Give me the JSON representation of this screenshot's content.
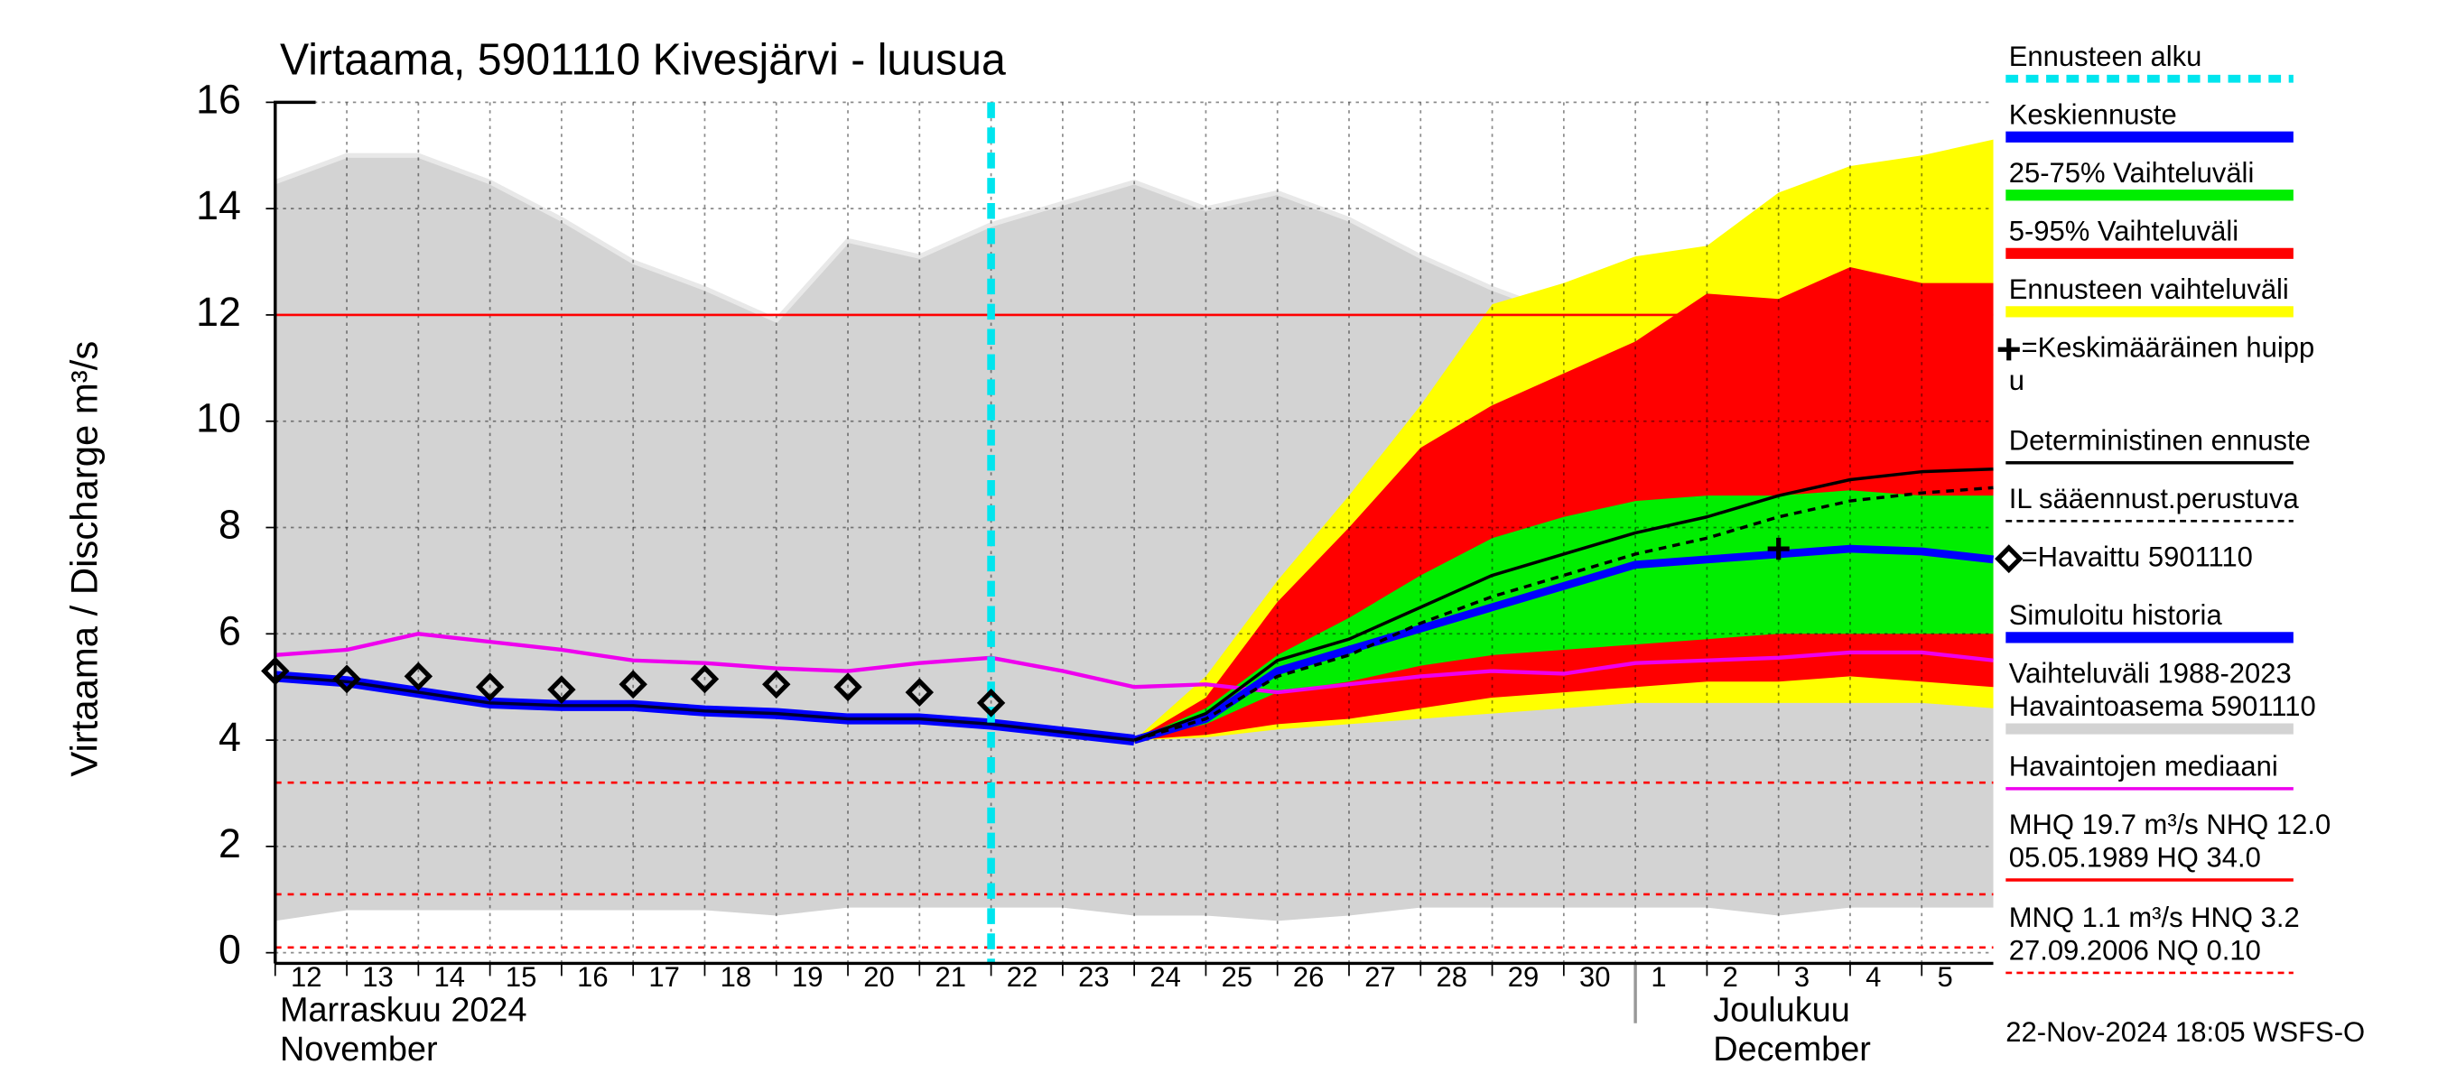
{
  "chart_data": {
    "type": "forecast-band",
    "title": "Virtaama, 5901110 Kivesjärvi - luusua",
    "y_label": "Virtaama / Discharge   m³/s",
    "ylim": [
      -0.2,
      16
    ],
    "yticks": [
      0,
      2,
      4,
      6,
      8,
      10,
      12,
      14,
      16
    ],
    "xlim": [
      0,
      24
    ],
    "xticks": [
      {
        "value": 0,
        "label": "12"
      },
      {
        "value": 1,
        "label": "13"
      },
      {
        "value": 2,
        "label": "14"
      },
      {
        "value": 3,
        "label": "15"
      },
      {
        "value": 4,
        "label": "16"
      },
      {
        "value": 5,
        "label": "17"
      },
      {
        "value": 6,
        "label": "18"
      },
      {
        "value": 7,
        "label": "19"
      },
      {
        "value": 8,
        "label": "20"
      },
      {
        "value": 9,
        "label": "21"
      },
      {
        "value": 10,
        "label": "22"
      },
      {
        "value": 11,
        "label": "23"
      },
      {
        "value": 12,
        "label": "24"
      },
      {
        "value": 13,
        "label": "25"
      },
      {
        "value": 14,
        "label": "26"
      },
      {
        "value": 15,
        "label": "27"
      },
      {
        "value": 16,
        "label": "28"
      },
      {
        "value": 17,
        "label": "29"
      },
      {
        "value": 18,
        "label": "30"
      },
      {
        "value": 19,
        "label": "1"
      },
      {
        "value": 20,
        "label": "2"
      },
      {
        "value": 21,
        "label": "3"
      },
      {
        "value": 22,
        "label": "4"
      },
      {
        "value": 23,
        "label": "5"
      }
    ],
    "months": [
      {
        "value": 0,
        "lines": [
          "Marraskuu 2024",
          "November"
        ]
      },
      {
        "value": 19,
        "lines": [
          "Joulukuu",
          "December"
        ]
      }
    ],
    "grid": true,
    "history_band": {
      "color": "#d3d3d3",
      "x": [
        0,
        1,
        2,
        3,
        4,
        5,
        6,
        7,
        8,
        9,
        10,
        11,
        12,
        13,
        14,
        15,
        16,
        17,
        18,
        19,
        20,
        21,
        22,
        23,
        24
      ],
      "upper": [
        14.5,
        15,
        15,
        14.5,
        13.8,
        13,
        12.5,
        11.9,
        13.4,
        13.1,
        13.7,
        14.1,
        14.5,
        14.0,
        14.3,
        13.8,
        13.1,
        12.5,
        12.0,
        11.7,
        11.3,
        10.8,
        10.5,
        10.8,
        10.8
      ],
      "lower": [
        0.6,
        0.8,
        0.8,
        0.8,
        0.8,
        0.8,
        0.8,
        0.7,
        0.85,
        0.85,
        0.85,
        0.85,
        0.7,
        0.7,
        0.6,
        0.7,
        0.85,
        0.85,
        0.85,
        0.85,
        0.85,
        0.7,
        0.85,
        0.85,
        0.85
      ],
      "edge_color": "#e8e8e8"
    },
    "forecast_range": {
      "color": "#ffff00",
      "x": [
        12,
        13,
        14,
        15,
        16,
        17,
        18,
        19,
        20,
        21,
        22,
        23,
        24
      ],
      "upper": [
        4.0,
        5.2,
        7.0,
        8.6,
        10.3,
        12.2,
        12.6,
        13.1,
        13.3,
        14.3,
        14.8,
        15.0,
        15.3
      ],
      "lower": [
        4.0,
        4.05,
        4.2,
        4.3,
        4.4,
        4.5,
        4.6,
        4.7,
        4.7,
        4.7,
        4.7,
        4.7,
        4.6
      ]
    },
    "p5_95": {
      "color": "#ff0000",
      "x": [
        12,
        13,
        14,
        15,
        16,
        17,
        18,
        19,
        20,
        21,
        22,
        23,
        24
      ],
      "upper": [
        4.0,
        4.8,
        6.6,
        8.0,
        9.5,
        10.3,
        10.9,
        11.5,
        12.4,
        12.3,
        12.9,
        12.6,
        12.6
      ],
      "lower": [
        4.0,
        4.1,
        4.3,
        4.4,
        4.6,
        4.8,
        4.9,
        5.0,
        5.1,
        5.1,
        5.2,
        5.1,
        5.0
      ]
    },
    "p25_75": {
      "color": "#00ee00",
      "x": [
        12,
        13,
        14,
        15,
        16,
        17,
        18,
        19,
        20,
        21,
        22,
        23,
        24
      ],
      "upper": [
        4.0,
        4.6,
        5.6,
        6.3,
        7.1,
        7.8,
        8.2,
        8.5,
        8.6,
        8.6,
        8.7,
        8.6,
        8.6
      ],
      "lower": [
        4.0,
        4.3,
        4.9,
        5.1,
        5.4,
        5.6,
        5.7,
        5.8,
        5.9,
        6.0,
        6.0,
        6.0,
        6.0
      ]
    },
    "median": {
      "color": "#ee00ee",
      "x": [
        0,
        1,
        2,
        3,
        4,
        5,
        6,
        7,
        8,
        9,
        10,
        11,
        12,
        13,
        14,
        15,
        16,
        17,
        18,
        19,
        20,
        21,
        22,
        23,
        24
      ],
      "values": [
        5.6,
        5.7,
        6.0,
        5.85,
        5.7,
        5.5,
        5.45,
        5.35,
        5.3,
        5.45,
        5.55,
        5.3,
        5.0,
        5.05,
        4.9,
        5.05,
        5.2,
        5.3,
        5.25,
        5.45,
        5.5,
        5.55,
        5.65,
        5.65,
        5.5
      ]
    },
    "simulated": {
      "color": "#0000ff",
      "x": [
        0,
        1,
        2,
        3,
        4,
        5,
        6,
        7,
        8,
        9,
        10,
        11,
        12
      ],
      "values": [
        5.2,
        5.1,
        4.9,
        4.7,
        4.65,
        4.65,
        4.55,
        4.5,
        4.4,
        4.4,
        4.3,
        4.15,
        4.0
      ]
    },
    "mean_forecast": {
      "color": "#0000ff",
      "x": [
        12,
        13,
        14,
        15,
        16,
        17,
        18,
        19,
        20,
        21,
        22,
        23,
        24
      ],
      "values": [
        4.0,
        4.4,
        5.3,
        5.7,
        6.1,
        6.5,
        6.9,
        7.3,
        7.4,
        7.5,
        7.6,
        7.55,
        7.4
      ]
    },
    "deterministic": {
      "color": "#000000",
      "x": [
        12,
        13,
        14,
        15,
        16,
        17,
        18,
        19,
        20,
        21,
        22,
        23,
        24
      ],
      "values": [
        4.0,
        4.5,
        5.5,
        5.9,
        6.5,
        7.1,
        7.5,
        7.9,
        8.2,
        8.6,
        8.9,
        9.05,
        9.1
      ]
    },
    "il_forecast": {
      "color": "#000000",
      "x": [
        12,
        13,
        14,
        15,
        16,
        17,
        18,
        19,
        20,
        21,
        22,
        23,
        24
      ],
      "values": [
        4.0,
        4.4,
        5.2,
        5.6,
        6.2,
        6.7,
        7.1,
        7.5,
        7.8,
        8.2,
        8.5,
        8.65,
        8.75
      ]
    },
    "observed": {
      "color": "#000000",
      "x": [
        0,
        1,
        2,
        3,
        4,
        5,
        6,
        7,
        8,
        9,
        10
      ],
      "values": [
        5.3,
        5.15,
        5.2,
        5.0,
        4.95,
        5.05,
        5.15,
        5.05,
        5.0,
        4.9,
        4.7
      ]
    },
    "mean_peak": {
      "color": "#000000",
      "x": 21,
      "value": 7.6
    },
    "forecast_start": {
      "color": "#00e5ee",
      "x": 10
    },
    "reference_lines": [
      {
        "value": 12.0,
        "color": "#ff0000",
        "dashed": false
      },
      {
        "value": 3.2,
        "color": "#ff0000",
        "dashed": true
      },
      {
        "value": 1.1,
        "color": "#ff0000",
        "dashed": true
      },
      {
        "value": 0.1,
        "color": "#ff0000",
        "dashed": true
      }
    ],
    "legend": [
      {
        "lines": [
          "Ennusteen alku"
        ],
        "color": "#00e5ee",
        "style": "dashed"
      },
      {
        "lines": [
          "Keskiennuste"
        ],
        "color": "#0000ff",
        "style": "thick"
      },
      {
        "lines": [
          "25-75% Vaihteluväli"
        ],
        "color": "#00ee00",
        "style": "thick"
      },
      {
        "lines": [
          "5-95% Vaihteluväli"
        ],
        "color": "#ff0000",
        "style": "thick"
      },
      {
        "lines": [
          "Ennusteen vaihteluväli"
        ],
        "color": "#ffff00",
        "style": "thick"
      },
      {
        "lines": [
          "=Keskimääräinen huipp",
          "u"
        ],
        "color": "#000000",
        "style": "plus"
      },
      {
        "lines": [
          "Deterministinen ennuste"
        ],
        "color": "#000000",
        "style": "line"
      },
      {
        "lines": [
          "IL sääennust.perustuva"
        ],
        "color": "#000000",
        "style": "dotted"
      },
      {
        "lines": [
          "=Havaittu 5901110"
        ],
        "color": "#000000",
        "style": "diamond"
      },
      {
        "lines": [
          "Simuloitu historia"
        ],
        "color": "#0000ff",
        "style": "thick"
      },
      {
        "lines": [
          "Vaihteluväli 1988-2023",
          " Havaintoasema 5901110"
        ],
        "color": "#d3d3d3",
        "style": "thick"
      },
      {
        "lines": [
          "Havaintojen mediaani"
        ],
        "color": "#ee00ee",
        "style": "line"
      },
      {
        "lines": [
          "MHQ 19.7 m³/s NHQ 12.0",
          "05.05.1989 HQ 34.0"
        ],
        "color": "#ff0000",
        "style": "line"
      },
      {
        "lines": [
          "MNQ  1.1 m³/s HNQ  3.2",
          "27.09.2006 NQ 0.10"
        ],
        "color": "#ff0000",
        "style": "dashed-thin"
      }
    ],
    "footer": "22-Nov-2024 18:05 WSFS-O"
  }
}
